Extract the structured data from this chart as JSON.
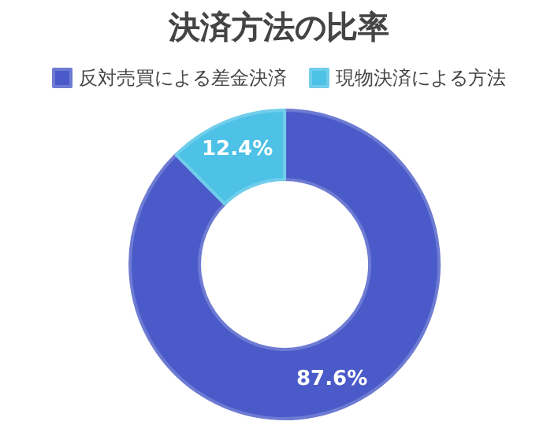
{
  "chart_data": {
    "type": "donut",
    "title": "決済方法の比率",
    "categories": [
      "反対売買による差金決済",
      "現物決済による方法"
    ],
    "values": [
      87.6,
      12.4
    ],
    "colors": [
      "#4a5ac8",
      "#4ec2e6"
    ],
    "legend": "top",
    "value_labels": [
      "87.6%",
      "12.4%"
    ]
  }
}
